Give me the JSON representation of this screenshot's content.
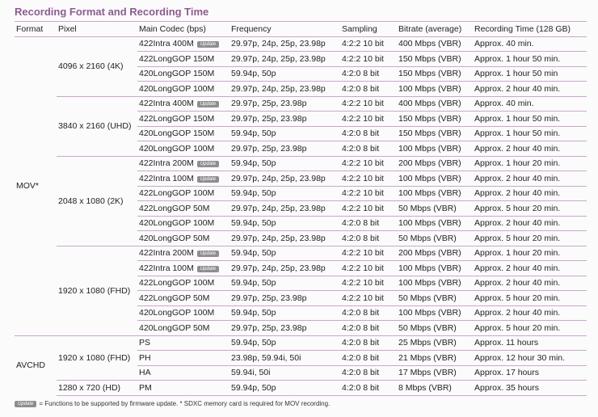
{
  "title": "Recording Format and Recording Time",
  "headers": [
    "Format",
    "Pixel",
    "Main Codec  (bps)",
    "Frequency",
    "Sampling",
    "Bitrate (average)",
    "Recording Time  (128 GB)"
  ],
  "badge_label": "Update",
  "formats": [
    {
      "name": "MOV*",
      "groups": [
        {
          "pixel": "4096 x 2160 (4K)",
          "rows": [
            {
              "codec": "422Intra 400M",
              "update": true,
              "freq": "29.97p, 24p, 25p, 23.98p",
              "sampling": "4:2:2  10 bit",
              "bitrate": "400 Mbps (VBR)",
              "time": "Approx. 40 min."
            },
            {
              "codec": "422LongGOP 150M",
              "freq": "29.97p, 24p, 25p, 23.98p",
              "sampling": "4:2:2  10 bit",
              "bitrate": "150 Mbps (VBR)",
              "time": "Approx. 1 hour 50 min."
            },
            {
              "codec": "420LongGOP 150M",
              "freq": "59.94p, 50p",
              "sampling": "4:2:0  8 bit",
              "bitrate": "150 Mbps (VBR)",
              "time": "Approx. 1 hour 50 min"
            },
            {
              "codec": "420LongGOP 100M",
              "freq": "29.97p, 24p, 25p, 23.98p",
              "sampling": "4:2:0  8 bit",
              "bitrate": "100 Mbps (VBR)",
              "time": "Approx. 2 hour 40 min."
            }
          ]
        },
        {
          "pixel": "3840 x 2160 (UHD)",
          "rows": [
            {
              "codec": "422Intra 400M",
              "update": true,
              "freq": "29.97p, 25p, 23.98p",
              "sampling": "4:2:2  10 bit",
              "bitrate": "400 Mbps (VBR)",
              "time": "Approx. 40 min."
            },
            {
              "codec": "422LongGOP 150M",
              "freq": "29.97p, 25p, 23.98p",
              "sampling": "4:2:2  10 bit",
              "bitrate": "150 Mbps (VBR)",
              "time": "Approx. 1 hour 50 min."
            },
            {
              "codec": "420LongGOP 150M",
              "freq": "59.94p, 50p",
              "sampling": "4:2:0  8 bit",
              "bitrate": "150 Mbps (VBR)",
              "time": "Approx. 1 hour 50 min."
            },
            {
              "codec": "420LongGOP 100M",
              "freq": "29.97p, 25p, 23.98p",
              "sampling": "4:2:0  8 bit",
              "bitrate": "100 Mbps (VBR)",
              "time": "Approx. 2 hour 40 min."
            }
          ]
        },
        {
          "pixel": "2048 x 1080 (2K)",
          "rows": [
            {
              "codec": "422Intra 200M",
              "update": true,
              "freq": "59.94p, 50p",
              "sampling": "4:2:2  10 bit",
              "bitrate": "200 Mbps (VBR)",
              "time": "Approx. 1 hour 20 min."
            },
            {
              "codec": "422Intra 100M",
              "update": true,
              "freq": "29.97p, 24p, 25p, 23.98p",
              "sampling": "4:2:2  10 bit",
              "bitrate": "100 Mbps (VBR)",
              "time": "Approx. 2 hour 40 min."
            },
            {
              "codec": "422LongGOP 100M",
              "freq": "59.94p, 50p",
              "sampling": "4:2:2  10 bit",
              "bitrate": "100 Mbps (VBR)",
              "time": "Approx. 2 hour 40 min."
            },
            {
              "codec": "422LongGOP  50M",
              "freq": "29.97p, 24p, 25p, 23.98p",
              "sampling": "4:2:2  10 bit",
              "bitrate": "50 Mbps (VBR)",
              "time": "Approx. 5 hour 20 min."
            },
            {
              "codec": "420LongGOP 100M",
              "freq": "59.94p, 50p",
              "sampling": "4:2:0  8 bit",
              "bitrate": "100 Mbps (VBR)",
              "time": "Approx. 2 hour 40 min."
            },
            {
              "codec": "420LongGOP 50M",
              "freq": "29.97p, 24p, 25p, 23.98p",
              "sampling": "4:2:0  8 bit",
              "bitrate": "50 Mbps (VBR)",
              "time": "Approx. 5 hour 20 min."
            }
          ]
        },
        {
          "pixel": "1920 x 1080 (FHD)",
          "rows": [
            {
              "codec": "422Intra 200M",
              "update": true,
              "freq": "59.94p, 50p",
              "sampling": "4:2:2  10 bit",
              "bitrate": "200 Mbps (VBR)",
              "time": "Approx. 1 hour 20 min."
            },
            {
              "codec": "422Intra 100M",
              "update": true,
              "freq": "29.97p, 24p, 25p, 23.98p",
              "sampling": "4:2:2  10 bit",
              "bitrate": "100 Mbps (VBR)",
              "time": "Approx. 2 hour 40 min."
            },
            {
              "codec": "422LongGOP 100M",
              "freq": "59.94p, 50p",
              "sampling": "4:2:2  10 bit",
              "bitrate": "100 Mbps (VBR)",
              "time": "Approx. 2 hour 40 min."
            },
            {
              "codec": "422LongGOP 50M",
              "freq": "29.97p, 25p, 23.98p",
              "sampling": "4:2:2  10 bit",
              "bitrate": "50 Mbps (VBR)",
              "time": "Approx. 5 hour 20 min."
            },
            {
              "codec": "420LongGOP 100M",
              "freq": "59.94p, 50p",
              "sampling": "4:2:0  8 bit",
              "bitrate": "100 Mbps (VBR)",
              "time": "Approx. 2 hour 40 min."
            },
            {
              "codec": "420LongGOP 50M",
              "freq": "29.97p, 25p, 23.98p",
              "sampling": "4:2:0  8 bit",
              "bitrate": "50 Mbps (VBR)",
              "time": "Approx. 5 hour 20 min."
            }
          ]
        }
      ]
    },
    {
      "name": "AVCHD",
      "groups": [
        {
          "pixel": "1920 x 1080 (FHD)",
          "rows": [
            {
              "codec": "PS",
              "freq": "59.94p, 50p",
              "sampling": "4:2:0  8 bit",
              "bitrate": "25 Mbps (VBR)",
              "time": "Approx. 11 hours"
            },
            {
              "codec": "PH",
              "freq": "23.98p, 59.94i, 50i",
              "sampling": "4:2:0  8 bit",
              "bitrate": "21 Mbps (VBR)",
              "time": "Approx. 12 hour 30 min."
            },
            {
              "codec": "HA",
              "freq": "59.94i, 50i",
              "sampling": "4:2:0  8 bit",
              "bitrate": "17 Mbps (VBR)",
              "time": "Approx. 17 hours"
            }
          ]
        },
        {
          "pixel": "1280 x 720 (HD)",
          "rows": [
            {
              "codec": "PM",
              "freq": "59.94p, 50p",
              "sampling": "4:2:0  8 bit",
              "bitrate": "8 Mbps (VBR)",
              "time": "Approx. 35 hours"
            }
          ]
        }
      ]
    }
  ],
  "footnote": "= Functions to be supported by firmware update.  * SDXC memory card is required for MOV recording.",
  "colors": {
    "title": "#8c5b92",
    "rule": "#c9a8cb",
    "badge": "#8e8e8e"
  }
}
